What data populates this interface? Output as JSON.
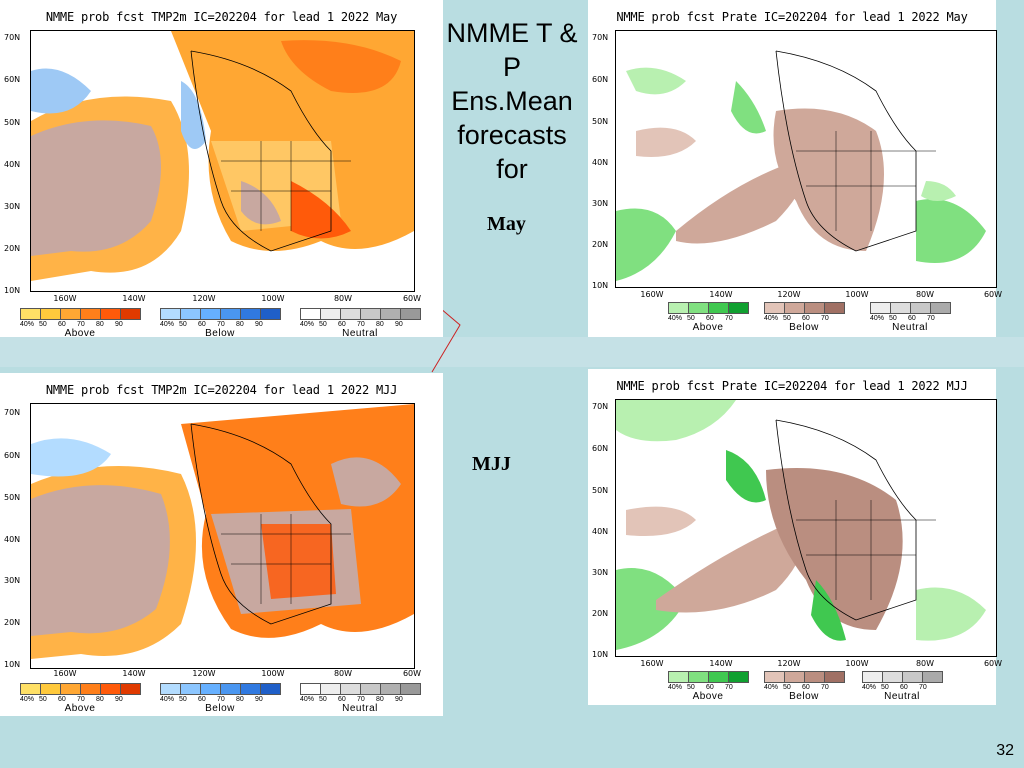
{
  "slide": {
    "title": "NMME T & P Ens.Mean forecasts for",
    "label_may": "May",
    "label_mjj": "MJJ",
    "page_number": "32"
  },
  "panels": [
    {
      "title": "NMME prob fcst TMP2m IC=202204 for lead 1 2022 May",
      "variable": "temperature",
      "lat_labels": [
        "70N",
        "60N",
        "50N",
        "40N",
        "30N",
        "20N",
        "10N"
      ],
      "lon_labels": [
        "160W",
        "140W",
        "120W",
        "100W",
        "80W",
        "60W"
      ],
      "legend": [
        {
          "label": "Above",
          "ticks": [
            "40%",
            "50",
            "60",
            "70",
            "80",
            "90"
          ],
          "colors": [
            "#ffe066",
            "#ffc93c",
            "#ffa733",
            "#ff7f1a",
            "#ff5a0a",
            "#e03a00"
          ]
        },
        {
          "label": "Below",
          "ticks": [
            "40%",
            "50",
            "60",
            "70",
            "80",
            "90"
          ],
          "colors": [
            "#b3dcff",
            "#8cc6ff",
            "#66b0ff",
            "#4a96f0",
            "#3079e0",
            "#1f5fc8"
          ]
        },
        {
          "label": "Neutral",
          "ticks": [
            "40%",
            "50",
            "60",
            "70",
            "80",
            "90"
          ],
          "colors": [
            "#ffffff",
            "#eeeeee",
            "#dddddd",
            "#c8c8c8",
            "#b0b0b0",
            "#999999"
          ]
        }
      ]
    },
    {
      "title": "NMME prob fcst Prate IC=202204 for lead 1 2022 May",
      "variable": "precipitation",
      "lat_labels": [
        "70N",
        "60N",
        "50N",
        "40N",
        "30N",
        "20N",
        "10N"
      ],
      "lon_labels": [
        "160W",
        "140W",
        "120W",
        "100W",
        "80W",
        "60W"
      ],
      "legend": [
        {
          "label": "Above",
          "ticks": [
            "40%",
            "50",
            "60",
            "70"
          ],
          "colors": [
            "#b8f0b0",
            "#80e080",
            "#40c850",
            "#10a030"
          ]
        },
        {
          "label": "Below",
          "ticks": [
            "40%",
            "50",
            "60",
            "70"
          ],
          "colors": [
            "#e2c4b8",
            "#cfa89a",
            "#ba8e80",
            "#a07064"
          ]
        },
        {
          "label": "Neutral",
          "ticks": [
            "40%",
            "50",
            "60",
            "70"
          ],
          "colors": [
            "#eeeeee",
            "#dddddd",
            "#c8c8c8",
            "#aaaaaa"
          ]
        }
      ]
    },
    {
      "title": "NMME prob fcst TMP2m IC=202204 for lead 1 2022 MJJ",
      "variable": "temperature",
      "lat_labels": [
        "70N",
        "60N",
        "50N",
        "40N",
        "30N",
        "20N",
        "10N"
      ],
      "lon_labels": [
        "160W",
        "140W",
        "120W",
        "100W",
        "80W",
        "60W"
      ],
      "legend": [
        {
          "label": "Above",
          "ticks": [
            "40%",
            "50",
            "60",
            "70",
            "80",
            "90"
          ],
          "colors": [
            "#ffe066",
            "#ffc93c",
            "#ffa733",
            "#ff7f1a",
            "#ff5a0a",
            "#e03a00"
          ]
        },
        {
          "label": "Below",
          "ticks": [
            "40%",
            "50",
            "60",
            "70",
            "80",
            "90"
          ],
          "colors": [
            "#b3dcff",
            "#8cc6ff",
            "#66b0ff",
            "#4a96f0",
            "#3079e0",
            "#1f5fc8"
          ]
        },
        {
          "label": "Neutral",
          "ticks": [
            "40%",
            "50",
            "60",
            "70",
            "80",
            "90"
          ],
          "colors": [
            "#ffffff",
            "#eeeeee",
            "#dddddd",
            "#c8c8c8",
            "#b0b0b0",
            "#999999"
          ]
        }
      ]
    },
    {
      "title": "NMME prob fcst Prate IC=202204 for lead 1 2022 MJJ",
      "variable": "precipitation",
      "lat_labels": [
        "70N",
        "60N",
        "50N",
        "40N",
        "30N",
        "20N",
        "10N"
      ],
      "lon_labels": [
        "160W",
        "140W",
        "120W",
        "100W",
        "80W",
        "60W"
      ],
      "legend": [
        {
          "label": "Above",
          "ticks": [
            "40%",
            "50",
            "60",
            "70"
          ],
          "colors": [
            "#b8f0b0",
            "#80e080",
            "#40c850",
            "#10a030"
          ]
        },
        {
          "label": "Below",
          "ticks": [
            "40%",
            "50",
            "60",
            "70"
          ],
          "colors": [
            "#e2c4b8",
            "#cfa89a",
            "#ba8e80",
            "#a07064"
          ]
        },
        {
          "label": "Neutral",
          "ticks": [
            "40%",
            "50",
            "60",
            "70"
          ],
          "colors": [
            "#eeeeee",
            "#dddddd",
            "#c8c8c8",
            "#aaaaaa"
          ]
        }
      ]
    }
  ]
}
